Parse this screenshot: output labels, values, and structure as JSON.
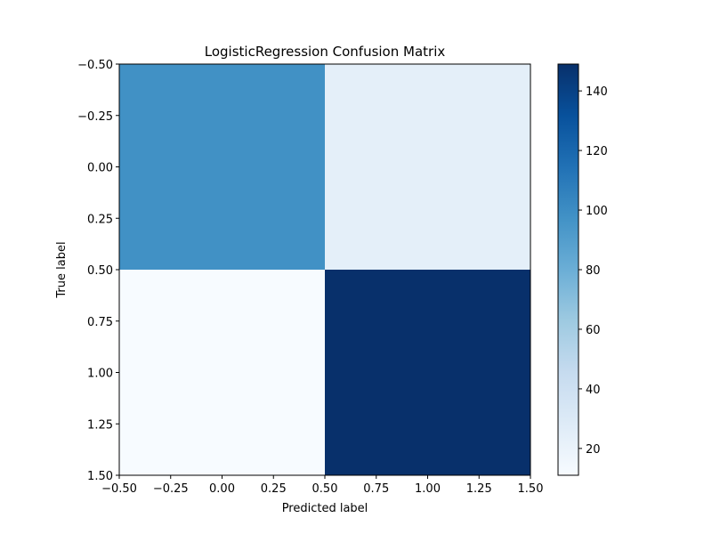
{
  "chart_data": {
    "type": "heatmap",
    "title": "LogisticRegression Confusion Matrix",
    "xlabel": "Predicted label",
    "ylabel": "True label",
    "matrix": [
      [
        98,
        24
      ],
      [
        11,
        149
      ]
    ],
    "xlim": [
      -0.5,
      1.5
    ],
    "ylim": [
      1.5,
      -0.5
    ],
    "xticks": [
      -0.5,
      -0.25,
      0.0,
      0.25,
      0.5,
      0.75,
      1.0,
      1.25,
      1.5
    ],
    "xtick_labels": [
      "−0.50",
      "−0.25",
      "0.00",
      "0.25",
      "0.50",
      "0.75",
      "1.00",
      "1.25",
      "1.50"
    ],
    "yticks": [
      -0.5,
      -0.25,
      0.0,
      0.25,
      0.5,
      0.75,
      1.0,
      1.25,
      1.5
    ],
    "ytick_labels": [
      "−0.50",
      "−0.25",
      "0.00",
      "0.25",
      "0.50",
      "0.75",
      "1.00",
      "1.25",
      "1.50"
    ],
    "colormap": "Blues",
    "colormap_stops": [
      "#f7fbff",
      "#deebf7",
      "#c6dbef",
      "#9ecae1",
      "#6baed6",
      "#4292c6",
      "#2171b5",
      "#08519c",
      "#08306b"
    ],
    "colorbar": {
      "vmin": 11,
      "vmax": 149,
      "ticks": [
        20,
        40,
        60,
        80,
        100,
        120,
        140
      ],
      "tick_labels": [
        "20",
        "40",
        "60",
        "80",
        "100",
        "120",
        "140"
      ]
    },
    "grid": false
  }
}
